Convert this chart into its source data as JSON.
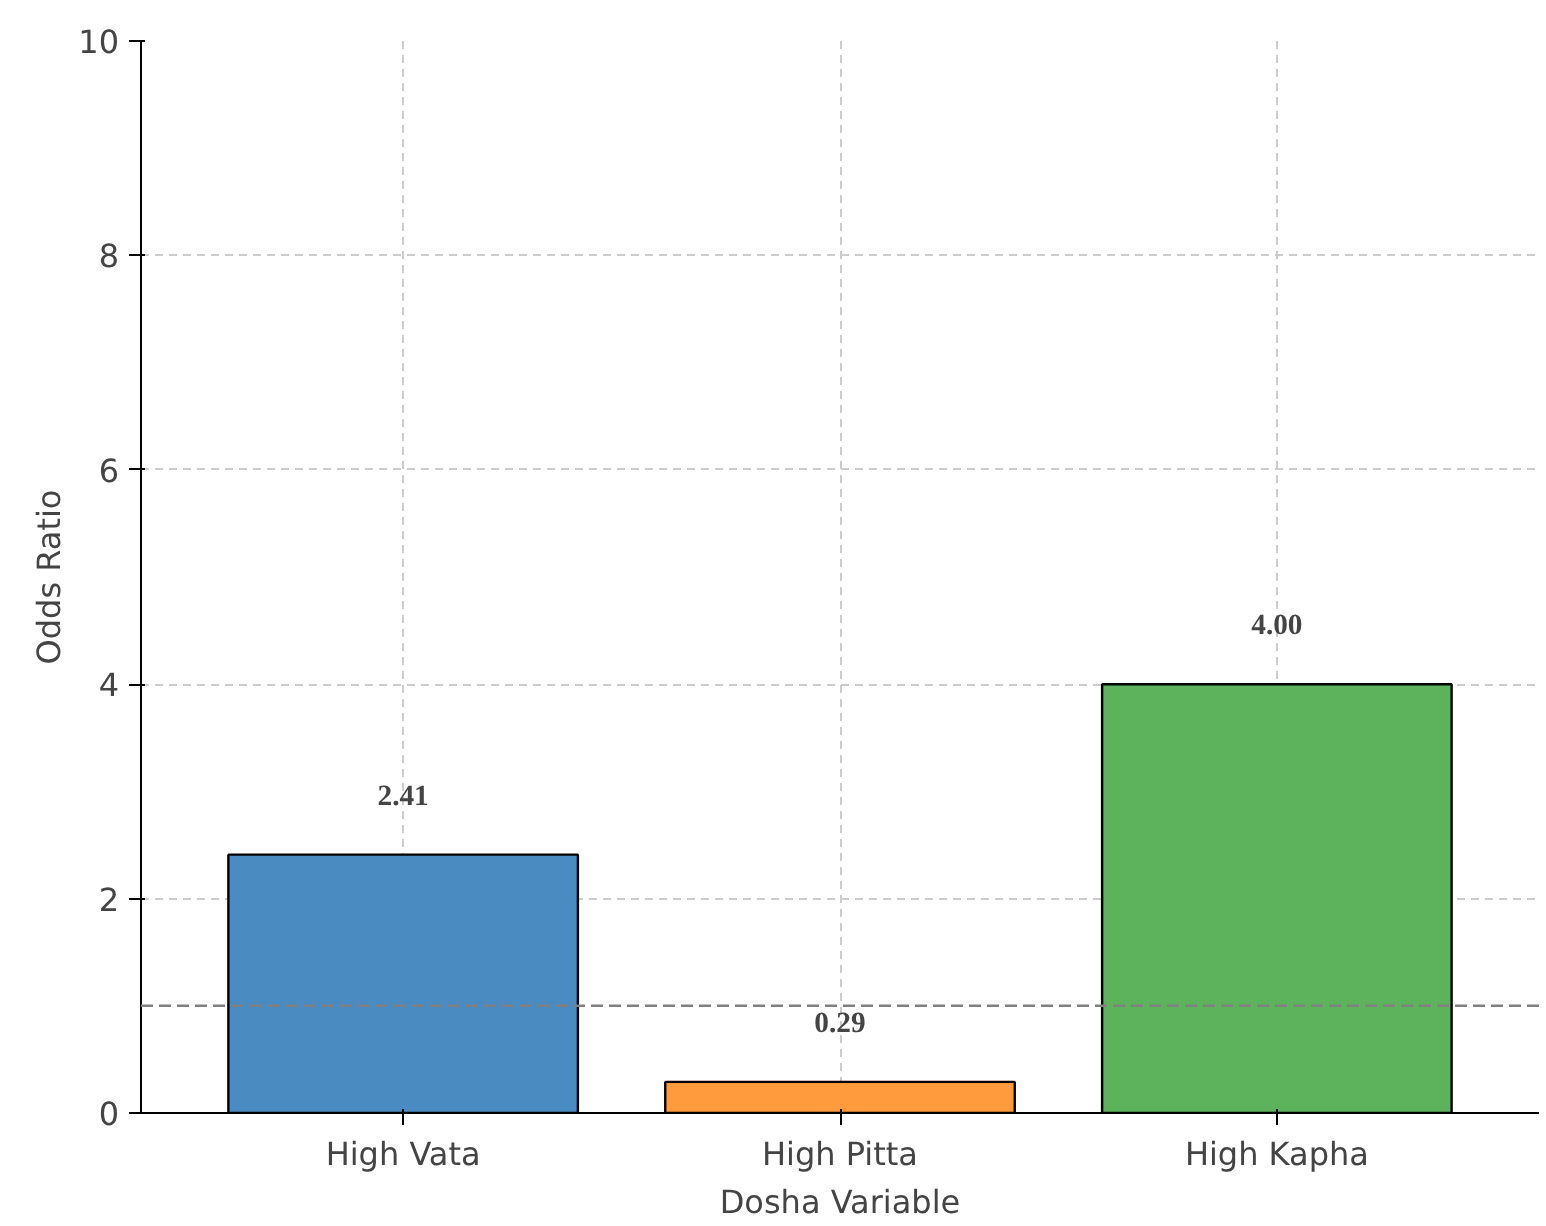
{
  "chart_data": {
    "type": "bar",
    "xlabel": "Dosha Variable",
    "ylabel": "Odds Ratio",
    "categories": [
      "High Vata",
      "High Pitta",
      "High Kapha"
    ],
    "values": [
      2.41,
      0.29,
      4.0
    ],
    "colors": [
      "#4a8cc2",
      "#ff9a3d",
      "#5cb35c"
    ],
    "value_labels": [
      "2.41",
      "0.29",
      "4.00"
    ],
    "ylim": [
      0,
      10
    ],
    "yticks": [
      0,
      2,
      4,
      6,
      8,
      10
    ],
    "grid": true,
    "ref_lines": [
      {
        "axis": "y",
        "value": 1,
        "color": "#808080",
        "line_style": "dashed"
      }
    ]
  }
}
